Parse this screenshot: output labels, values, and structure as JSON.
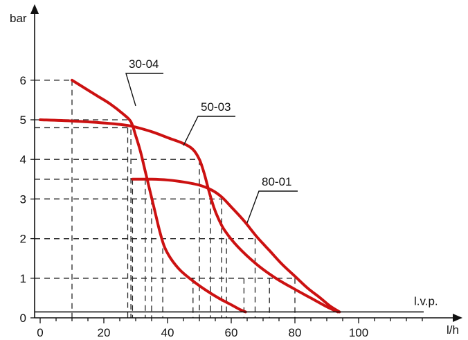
{
  "chart_data": {
    "type": "line",
    "xlabel": "l/h",
    "ylabel": "bar",
    "xlim": [
      0,
      120
    ],
    "ylim": [
      0,
      6.8
    ],
    "x_ticks": [
      0,
      20,
      40,
      60,
      80,
      100
    ],
    "y_ticks": [
      0,
      1,
      2,
      3,
      4,
      5,
      6
    ],
    "x_minor_step": 5,
    "reference_line": {
      "label": "l.v.p.",
      "y": 0.15
    },
    "color": "#cc1111",
    "series": [
      {
        "name": "30-04",
        "x": [
          10,
          14,
          18,
          22,
          26,
          28.5,
          30,
          31.5,
          33,
          34.5,
          36,
          37.5,
          39,
          41,
          44,
          48,
          52,
          56,
          60,
          63,
          64.5
        ],
        "y": [
          6.0,
          5.8,
          5.6,
          5.4,
          5.15,
          4.95,
          4.6,
          4.2,
          3.7,
          3.2,
          2.7,
          2.2,
          1.8,
          1.5,
          1.2,
          0.93,
          0.7,
          0.5,
          0.33,
          0.2,
          0.15
        ]
      },
      {
        "name": "50-03",
        "x": [
          0,
          10,
          20,
          28,
          35,
          40,
          45,
          48,
          50,
          51.5,
          53,
          54.5,
          56,
          58,
          62,
          68,
          74,
          80,
          85,
          90,
          93.5
        ],
        "y": [
          5.0,
          4.97,
          4.92,
          4.85,
          4.7,
          4.55,
          4.4,
          4.25,
          4.0,
          3.65,
          3.2,
          2.8,
          2.5,
          2.2,
          1.8,
          1.35,
          1.0,
          0.72,
          0.5,
          0.28,
          0.15
        ]
      },
      {
        "name": "80-01",
        "x": [
          29,
          35,
          40,
          45,
          50,
          54,
          57,
          60,
          64,
          68,
          72,
          76,
          80,
          84,
          88,
          91,
          94
        ],
        "y": [
          3.5,
          3.5,
          3.48,
          3.43,
          3.35,
          3.22,
          3.05,
          2.8,
          2.45,
          2.05,
          1.7,
          1.35,
          1.05,
          0.75,
          0.5,
          0.3,
          0.15
        ]
      }
    ],
    "annotations": [
      {
        "text": "30-04",
        "series": "30-04"
      },
      {
        "text": "50-03",
        "series": "50-03"
      },
      {
        "text": "80-01",
        "series": "80-01"
      }
    ],
    "guides": [
      {
        "x": 10,
        "y": 6.0
      },
      {
        "x": 28.5,
        "y": 5.0
      },
      {
        "x": 27.5,
        "y": 4.8
      },
      {
        "x": 50,
        "y": 4.0
      },
      {
        "x": 29,
        "y": 3.5
      },
      {
        "x": 35,
        "y": 3.0
      },
      {
        "x": 33,
        "y": 3.5
      },
      {
        "x": 53.5,
        "y": 3.0
      },
      {
        "x": 57,
        "y": 3.0
      },
      {
        "x": 38.5,
        "y": 2.0
      },
      {
        "x": 58.5,
        "y": 2.0
      },
      {
        "x": 67.5,
        "y": 2.0
      },
      {
        "x": 48,
        "y": 1.0
      },
      {
        "x": 64,
        "y": 1.0
      },
      {
        "x": 72,
        "y": 1.0
      },
      {
        "x": 80,
        "y": 1.0
      }
    ]
  }
}
